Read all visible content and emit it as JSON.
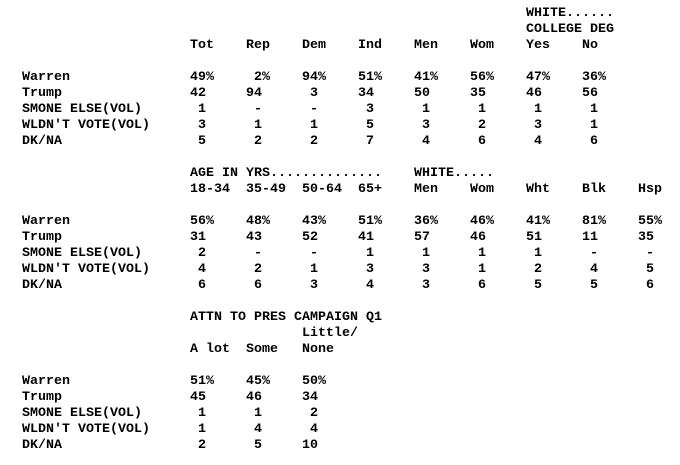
{
  "blocks": [
    {
      "groups": [
        [
          "WHITE......",
          "COLLEGE DEG"
        ]
      ],
      "columns": [
        [
          "Tot"
        ],
        [
          "Rep"
        ],
        [
          "Dem"
        ],
        [
          "Ind"
        ],
        [
          "Men"
        ],
        [
          "Wom"
        ],
        [
          "Yes"
        ],
        [
          "No"
        ]
      ],
      "rows": [
        {
          "label": "Warren",
          "values": [
            "49%",
            "2%",
            "94%",
            "51%",
            "41%",
            "56%",
            "47%",
            "36%"
          ]
        },
        {
          "label": "Trump",
          "values": [
            "42",
            "94",
            "3",
            "34",
            "50",
            "35",
            "46",
            "56"
          ]
        },
        {
          "label": "SMONE ELSE(VOL)",
          "values": [
            "1",
            "-",
            "-",
            "3",
            "1",
            "1",
            "1",
            "1"
          ]
        },
        {
          "label": "WLDN'T VOTE(VOL)",
          "values": [
            "3",
            "1",
            "1",
            "5",
            "3",
            "2",
            "3",
            "1"
          ]
        },
        {
          "label": "DK/NA",
          "values": [
            "5",
            "2",
            "2",
            "7",
            "4",
            "6",
            "4",
            "6"
          ]
        }
      ]
    },
    {
      "groups": [
        [
          "AGE IN YRS.............."
        ],
        [
          "WHITE....."
        ]
      ],
      "columns": [
        [
          "18-34"
        ],
        [
          "35-49"
        ],
        [
          "50-64"
        ],
        [
          "65+"
        ],
        [
          "Men"
        ],
        [
          "Wom"
        ],
        [
          "Wht"
        ],
        [
          "Blk"
        ],
        [
          "Hsp"
        ]
      ],
      "rows": [
        {
          "label": "Warren",
          "values": [
            "56%",
            "48%",
            "43%",
            "51%",
            "36%",
            "46%",
            "41%",
            "81%",
            "55%"
          ]
        },
        {
          "label": "Trump",
          "values": [
            "31",
            "43",
            "52",
            "41",
            "57",
            "46",
            "51",
            "11",
            "35"
          ]
        },
        {
          "label": "SMONE ELSE(VOL)",
          "values": [
            "2",
            "-",
            "-",
            "1",
            "1",
            "1",
            "1",
            "-",
            "-"
          ]
        },
        {
          "label": "WLDN'T VOTE(VOL)",
          "values": [
            "4",
            "2",
            "1",
            "3",
            "3",
            "1",
            "2",
            "4",
            "5"
          ]
        },
        {
          "label": "DK/NA",
          "values": [
            "6",
            "6",
            "3",
            "4",
            "3",
            "6",
            "5",
            "5",
            "6"
          ]
        }
      ]
    },
    {
      "groups": [
        [
          "ATTN TO PRES CAMPAIGN Q1"
        ]
      ],
      "columns": [
        [
          "A lot"
        ],
        [
          "Some"
        ],
        [
          "Little/",
          "None"
        ]
      ],
      "rows": [
        {
          "label": "Warren",
          "values": [
            "51%",
            "45%",
            "50%"
          ]
        },
        {
          "label": "Trump",
          "values": [
            "45",
            "46",
            "34"
          ]
        },
        {
          "label": "SMONE ELSE(VOL)",
          "values": [
            "1",
            "1",
            "2"
          ]
        },
        {
          "label": "WLDN'T VOTE(VOL)",
          "values": [
            "1",
            "4",
            "4"
          ]
        },
        {
          "label": "DK/NA",
          "values": [
            "2",
            "5",
            "10"
          ]
        }
      ]
    }
  ]
}
